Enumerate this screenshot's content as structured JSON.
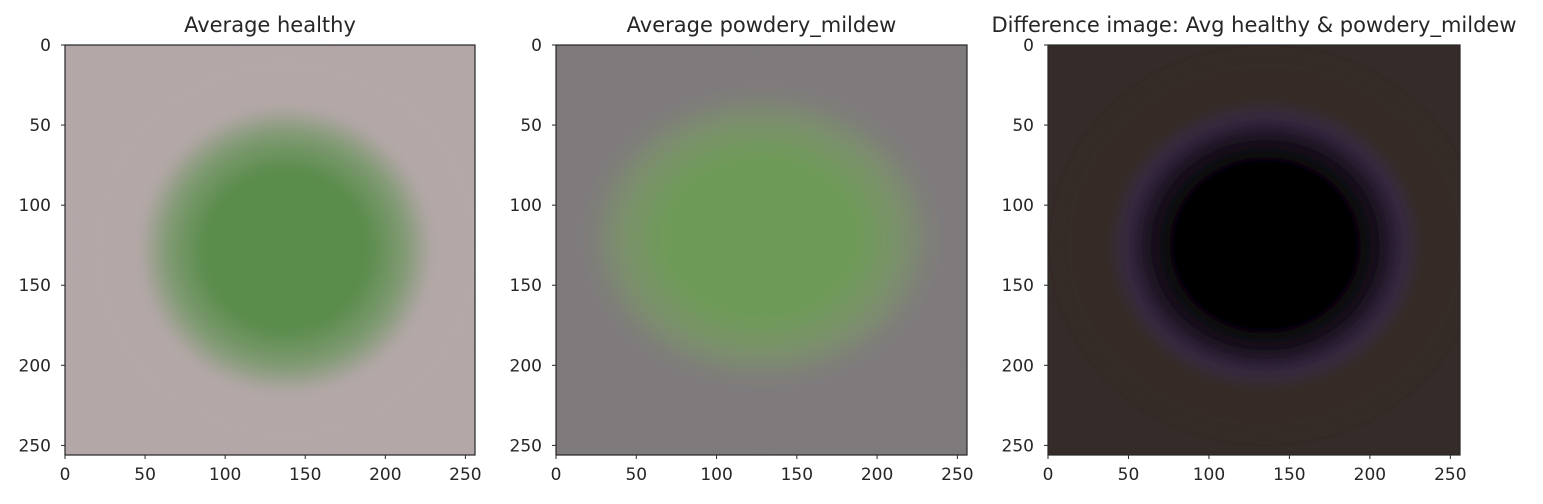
{
  "chart_data": [
    {
      "type": "heatmap",
      "title": "Average healthy",
      "xlabel": "",
      "ylabel": "",
      "xlim": [
        0,
        256
      ],
      "ylim": [
        256,
        0
      ],
      "x_ticks": [
        0,
        50,
        100,
        150,
        200,
        250
      ],
      "y_ticks": [
        0,
        50,
        100,
        150,
        200,
        250
      ],
      "grid": false,
      "image": {
        "background_color": "#b4a7a8",
        "center_color": "#5a8c4b",
        "mid_color": "#7f9a72",
        "center": [
          138,
          128
        ],
        "radius": [
          92,
          90
        ]
      }
    },
    {
      "type": "heatmap",
      "title": "Average powdery_mildew",
      "xlabel": "",
      "ylabel": "",
      "xlim": [
        0,
        256
      ],
      "ylim": [
        256,
        0
      ],
      "x_ticks": [
        0,
        50,
        100,
        150,
        200,
        250
      ],
      "y_ticks": [
        0,
        50,
        100,
        150,
        200,
        250
      ],
      "grid": false,
      "image": {
        "background_color": "#7f7a7c",
        "center_color": "#6e9a58",
        "mid_color": "#7c8f6d",
        "center": [
          128,
          120
        ],
        "radius": [
          110,
          92
        ]
      }
    },
    {
      "type": "heatmap",
      "title": "Difference image: Avg healthy & powdery_mildew",
      "xlabel": "",
      "ylabel": "",
      "xlim": [
        0,
        256
      ],
      "ylim": [
        256,
        0
      ],
      "x_ticks": [
        0,
        50,
        100,
        150,
        200,
        250
      ],
      "y_ticks": [
        0,
        50,
        100,
        150,
        200,
        250
      ],
      "grid": false,
      "image": {
        "background_color": "#352b28",
        "center_color": "#000000",
        "mid_color": "#1c1422",
        "edge_tint": "#3a2a48",
        "center": [
          135,
          125
        ],
        "radius": [
          95,
          88
        ]
      }
    }
  ]
}
